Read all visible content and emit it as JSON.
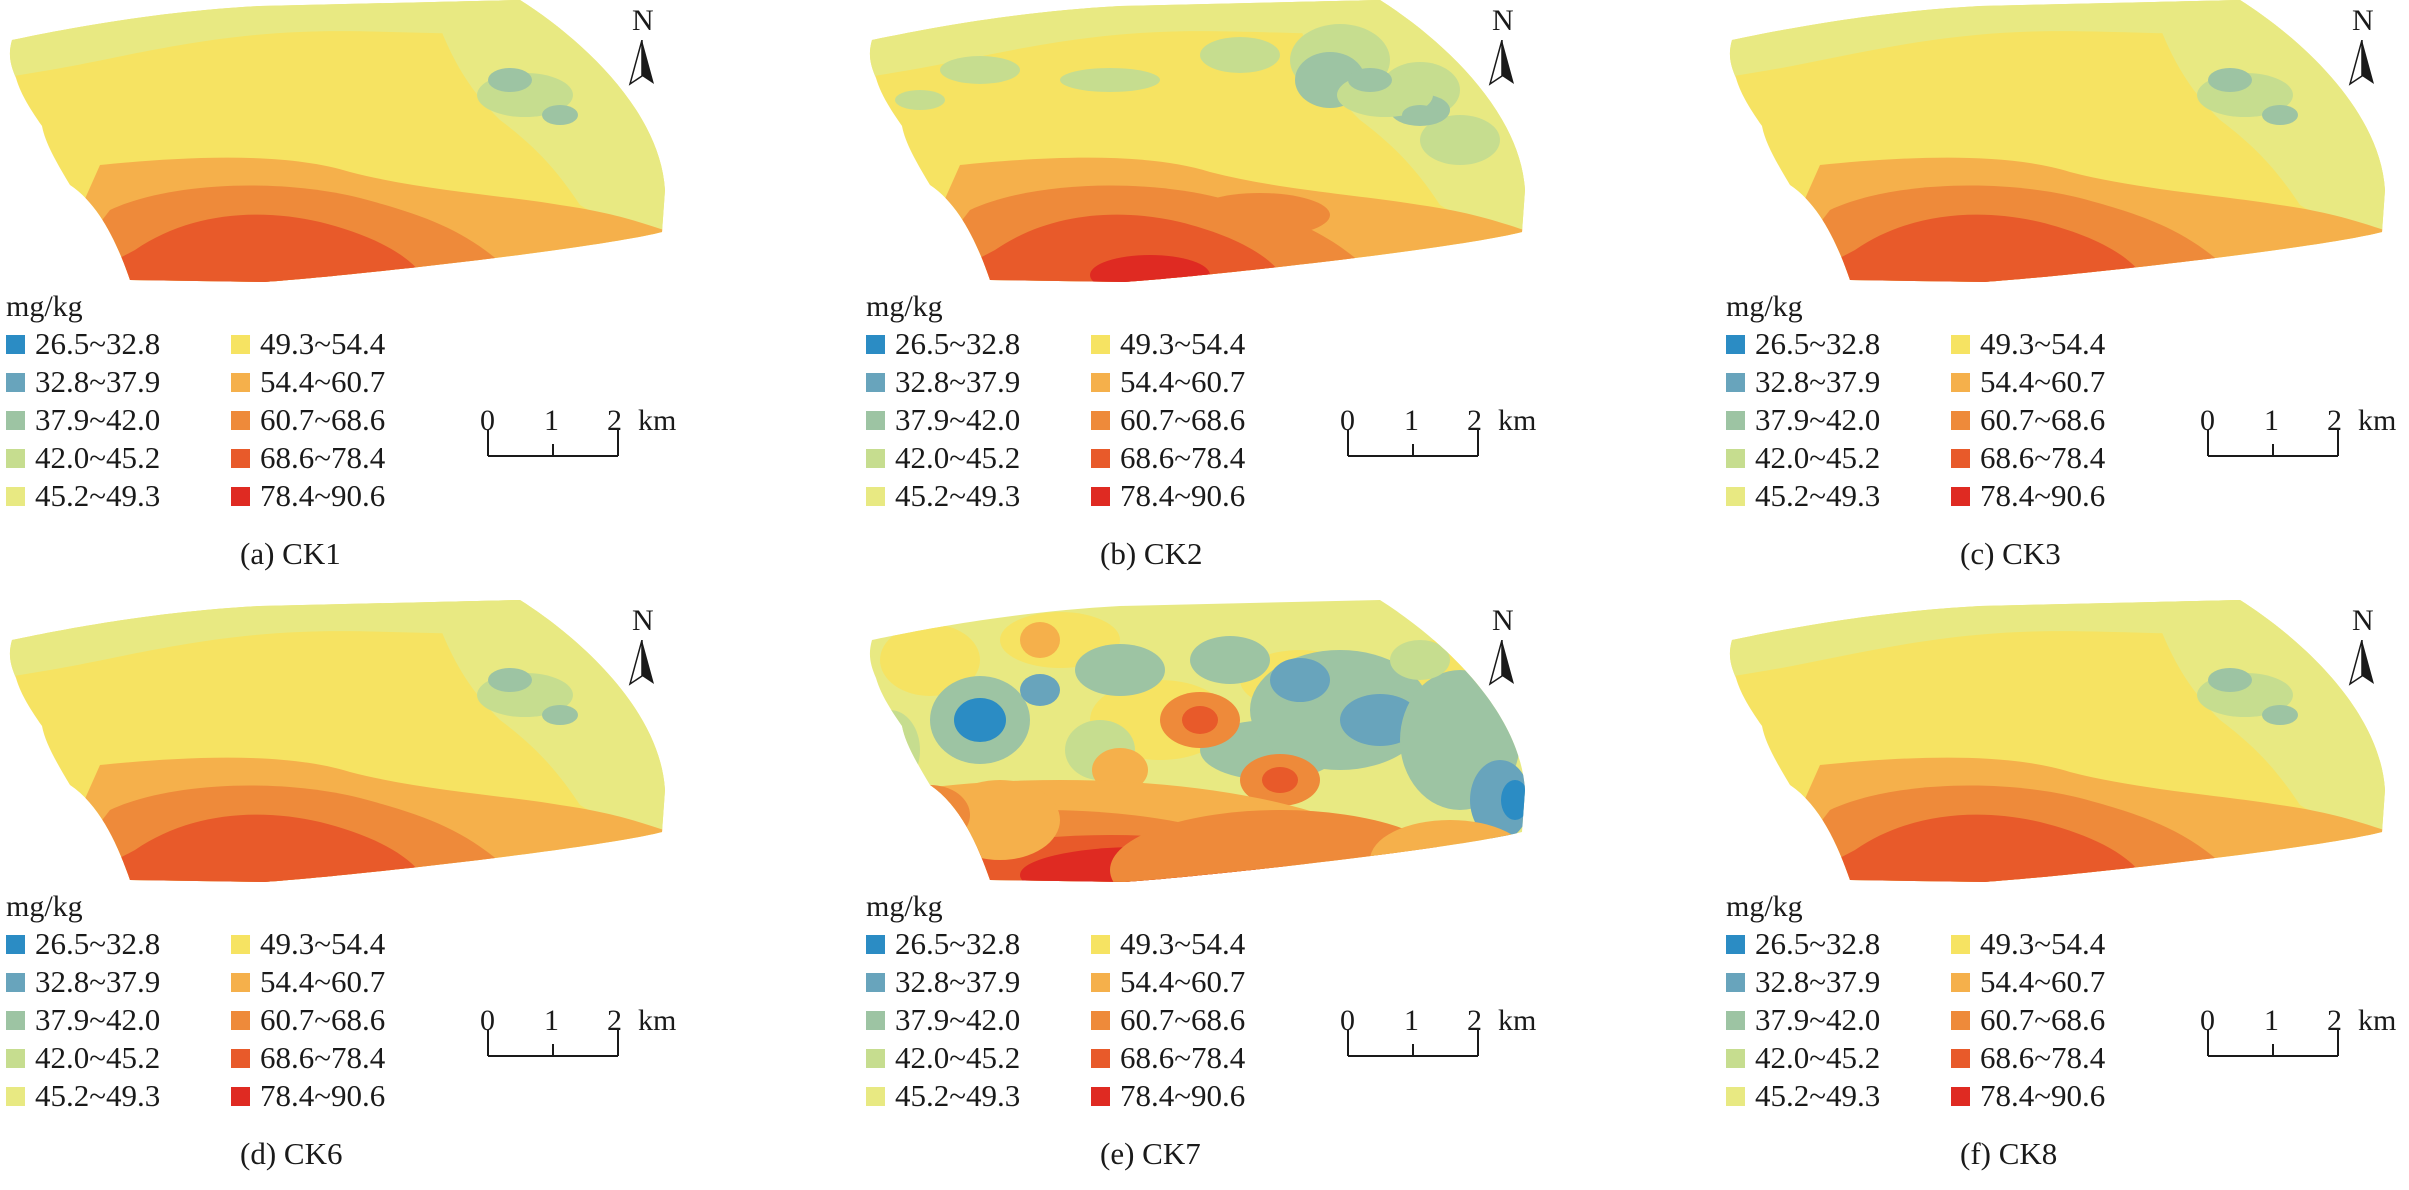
{
  "figure": {
    "colors": {
      "c1": "#2b8cc4",
      "c2": "#68a4bc",
      "c3": "#9dc4a3",
      "c4": "#c6dd8f",
      "c5": "#e8e982",
      "c6": "#f6e362",
      "c7": "#f5b04b",
      "c8": "#ee8a3a",
      "c9": "#e85a2a",
      "c10": "#df2a22"
    },
    "legend": {
      "unit": "mg/kg",
      "classes": [
        {
          "label": "26.5~32.8",
          "color": "#2b8cc4"
        },
        {
          "label": "32.8~37.9",
          "color": "#68a4bc"
        },
        {
          "label": "37.9~42.0",
          "color": "#9dc4a3"
        },
        {
          "label": "42.0~45.2",
          "color": "#c6dd8f"
        },
        {
          "label": "45.2~49.3",
          "color": "#e8e982"
        },
        {
          "label": "49.3~54.4",
          "color": "#f6e362"
        },
        {
          "label": "54.4~60.7",
          "color": "#f5b04b"
        },
        {
          "label": "60.7~68.6",
          "color": "#ee8a3a"
        },
        {
          "label": "68.6~78.4",
          "color": "#e85a2a"
        },
        {
          "label": "78.4~90.6",
          "color": "#df2a22"
        }
      ]
    },
    "scale": {
      "ticks": [
        "0",
        "1",
        "2"
      ],
      "unit": "km"
    },
    "north_label": "N",
    "panels": [
      {
        "id": "a",
        "caption": "(a) CK1",
        "pattern": "smooth"
      },
      {
        "id": "b",
        "caption": "(b) CK2",
        "pattern": "smooth-rough"
      },
      {
        "id": "c",
        "caption": "(c) CK3",
        "pattern": "smooth"
      },
      {
        "id": "d",
        "caption": "(d) CK6",
        "pattern": "smooth"
      },
      {
        "id": "e",
        "caption": "(e) CK7",
        "pattern": "patchy"
      },
      {
        "id": "f",
        "caption": "(f) CK8",
        "pattern": "smooth"
      }
    ]
  }
}
